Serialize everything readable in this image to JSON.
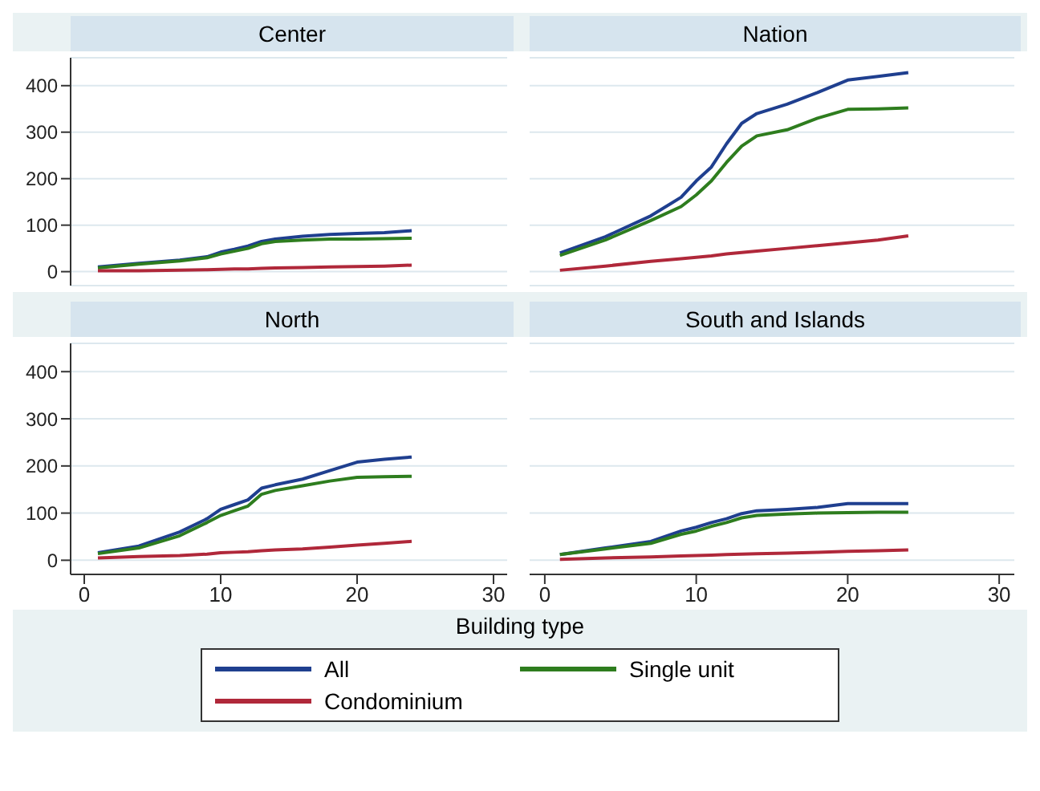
{
  "chart_data": [
    {
      "type": "line",
      "title": "Center",
      "x": [
        1,
        4,
        7,
        9,
        10,
        11,
        12,
        13,
        14,
        16,
        18,
        20,
        22,
        24
      ],
      "xlim": [
        -1,
        31
      ],
      "xticks": [
        0,
        10,
        20,
        30
      ],
      "ylim": [
        -30,
        460
      ],
      "yticks": [
        0,
        100,
        200,
        300,
        400
      ],
      "grid": "y",
      "tick_labels": "y",
      "series": [
        {
          "color": "#1f3f8f",
          "values": [
            10,
            18,
            25,
            32,
            42,
            48,
            55,
            65,
            70,
            76,
            80,
            82,
            84,
            88
          ]
        },
        {
          "color": "#2e7d1e",
          "values": [
            8,
            16,
            23,
            30,
            38,
            44,
            50,
            60,
            65,
            68,
            70,
            70,
            71,
            72
          ]
        },
        {
          "color": "#b0283a",
          "values": [
            2,
            2,
            3,
            4,
            5,
            6,
            6,
            7,
            8,
            9,
            10,
            11,
            12,
            14
          ]
        }
      ]
    },
    {
      "type": "line",
      "title": "Nation",
      "x": [
        1,
        4,
        7,
        9,
        10,
        11,
        12,
        13,
        14,
        16,
        18,
        20,
        22,
        24
      ],
      "xlim": [
        -1,
        31
      ],
      "xticks": [
        0,
        10,
        20,
        30
      ],
      "ylim": [
        -30,
        460
      ],
      "yticks": [
        0,
        100,
        200,
        300,
        400
      ],
      "grid": "y",
      "tick_labels": false,
      "series": [
        {
          "color": "#1f3f8f",
          "values": [
            40,
            75,
            120,
            160,
            195,
            225,
            275,
            319,
            340,
            360,
            385,
            412,
            420,
            428
          ]
        },
        {
          "color": "#2e7d1e",
          "values": [
            35,
            68,
            110,
            140,
            165,
            195,
            235,
            270,
            292,
            305,
            330,
            349,
            350,
            352
          ]
        },
        {
          "color": "#b0283a",
          "values": [
            3,
            12,
            22,
            28,
            31,
            34,
            38,
            41,
            44,
            50,
            56,
            62,
            68,
            77
          ]
        }
      ]
    },
    {
      "type": "line",
      "title": "North",
      "x": [
        1,
        4,
        7,
        9,
        10,
        11,
        12,
        13,
        14,
        16,
        18,
        20,
        22,
        24
      ],
      "xlim": [
        -1,
        31
      ],
      "xticks": [
        0,
        10,
        20,
        30
      ],
      "ylim": [
        -30,
        460
      ],
      "yticks": [
        0,
        100,
        200,
        300,
        400
      ],
      "grid": "y",
      "series": [
        {
          "color": "#1f3f8f",
          "values": [
            16,
            30,
            60,
            88,
            108,
            118,
            128,
            153,
            160,
            172,
            190,
            208,
            214,
            219
          ]
        },
        {
          "color": "#2e7d1e",
          "values": [
            14,
            26,
            52,
            80,
            95,
            105,
            115,
            140,
            148,
            158,
            168,
            176,
            177,
            178
          ]
        },
        {
          "color": "#b0283a",
          "values": [
            5,
            8,
            10,
            13,
            16,
            17,
            18,
            20,
            22,
            24,
            28,
            32,
            36,
            40
          ]
        }
      ]
    },
    {
      "type": "line",
      "title": "South and Islands",
      "xlabel": "Building type",
      "x": [
        1,
        4,
        7,
        9,
        10,
        11,
        12,
        13,
        14,
        16,
        18,
        20,
        22,
        24
      ],
      "xlim": [
        -1,
        31
      ],
      "xticks": [
        0,
        10,
        20,
        30
      ],
      "ylim": [
        -30,
        460
      ],
      "yticks": [
        0,
        100,
        200,
        300,
        400
      ],
      "grid": "y",
      "tick_labels": "x",
      "legend": "bottom",
      "series": [
        {
          "name": "All",
          "color": "#1f3f8f",
          "values": [
            12,
            26,
            40,
            62,
            70,
            80,
            88,
            99,
            105,
            108,
            112,
            120,
            120,
            120
          ]
        },
        {
          "name": "Single unit",
          "color": "#2e7d1e",
          "values": [
            12,
            24,
            36,
            55,
            62,
            72,
            80,
            90,
            95,
            98,
            100,
            101,
            102,
            102
          ]
        },
        {
          "name": "Condominium",
          "color": "#b0283a",
          "values": [
            2,
            5,
            7,
            9,
            10,
            11,
            12,
            13,
            14,
            15,
            17,
            19,
            20,
            22
          ]
        }
      ]
    }
  ]
}
